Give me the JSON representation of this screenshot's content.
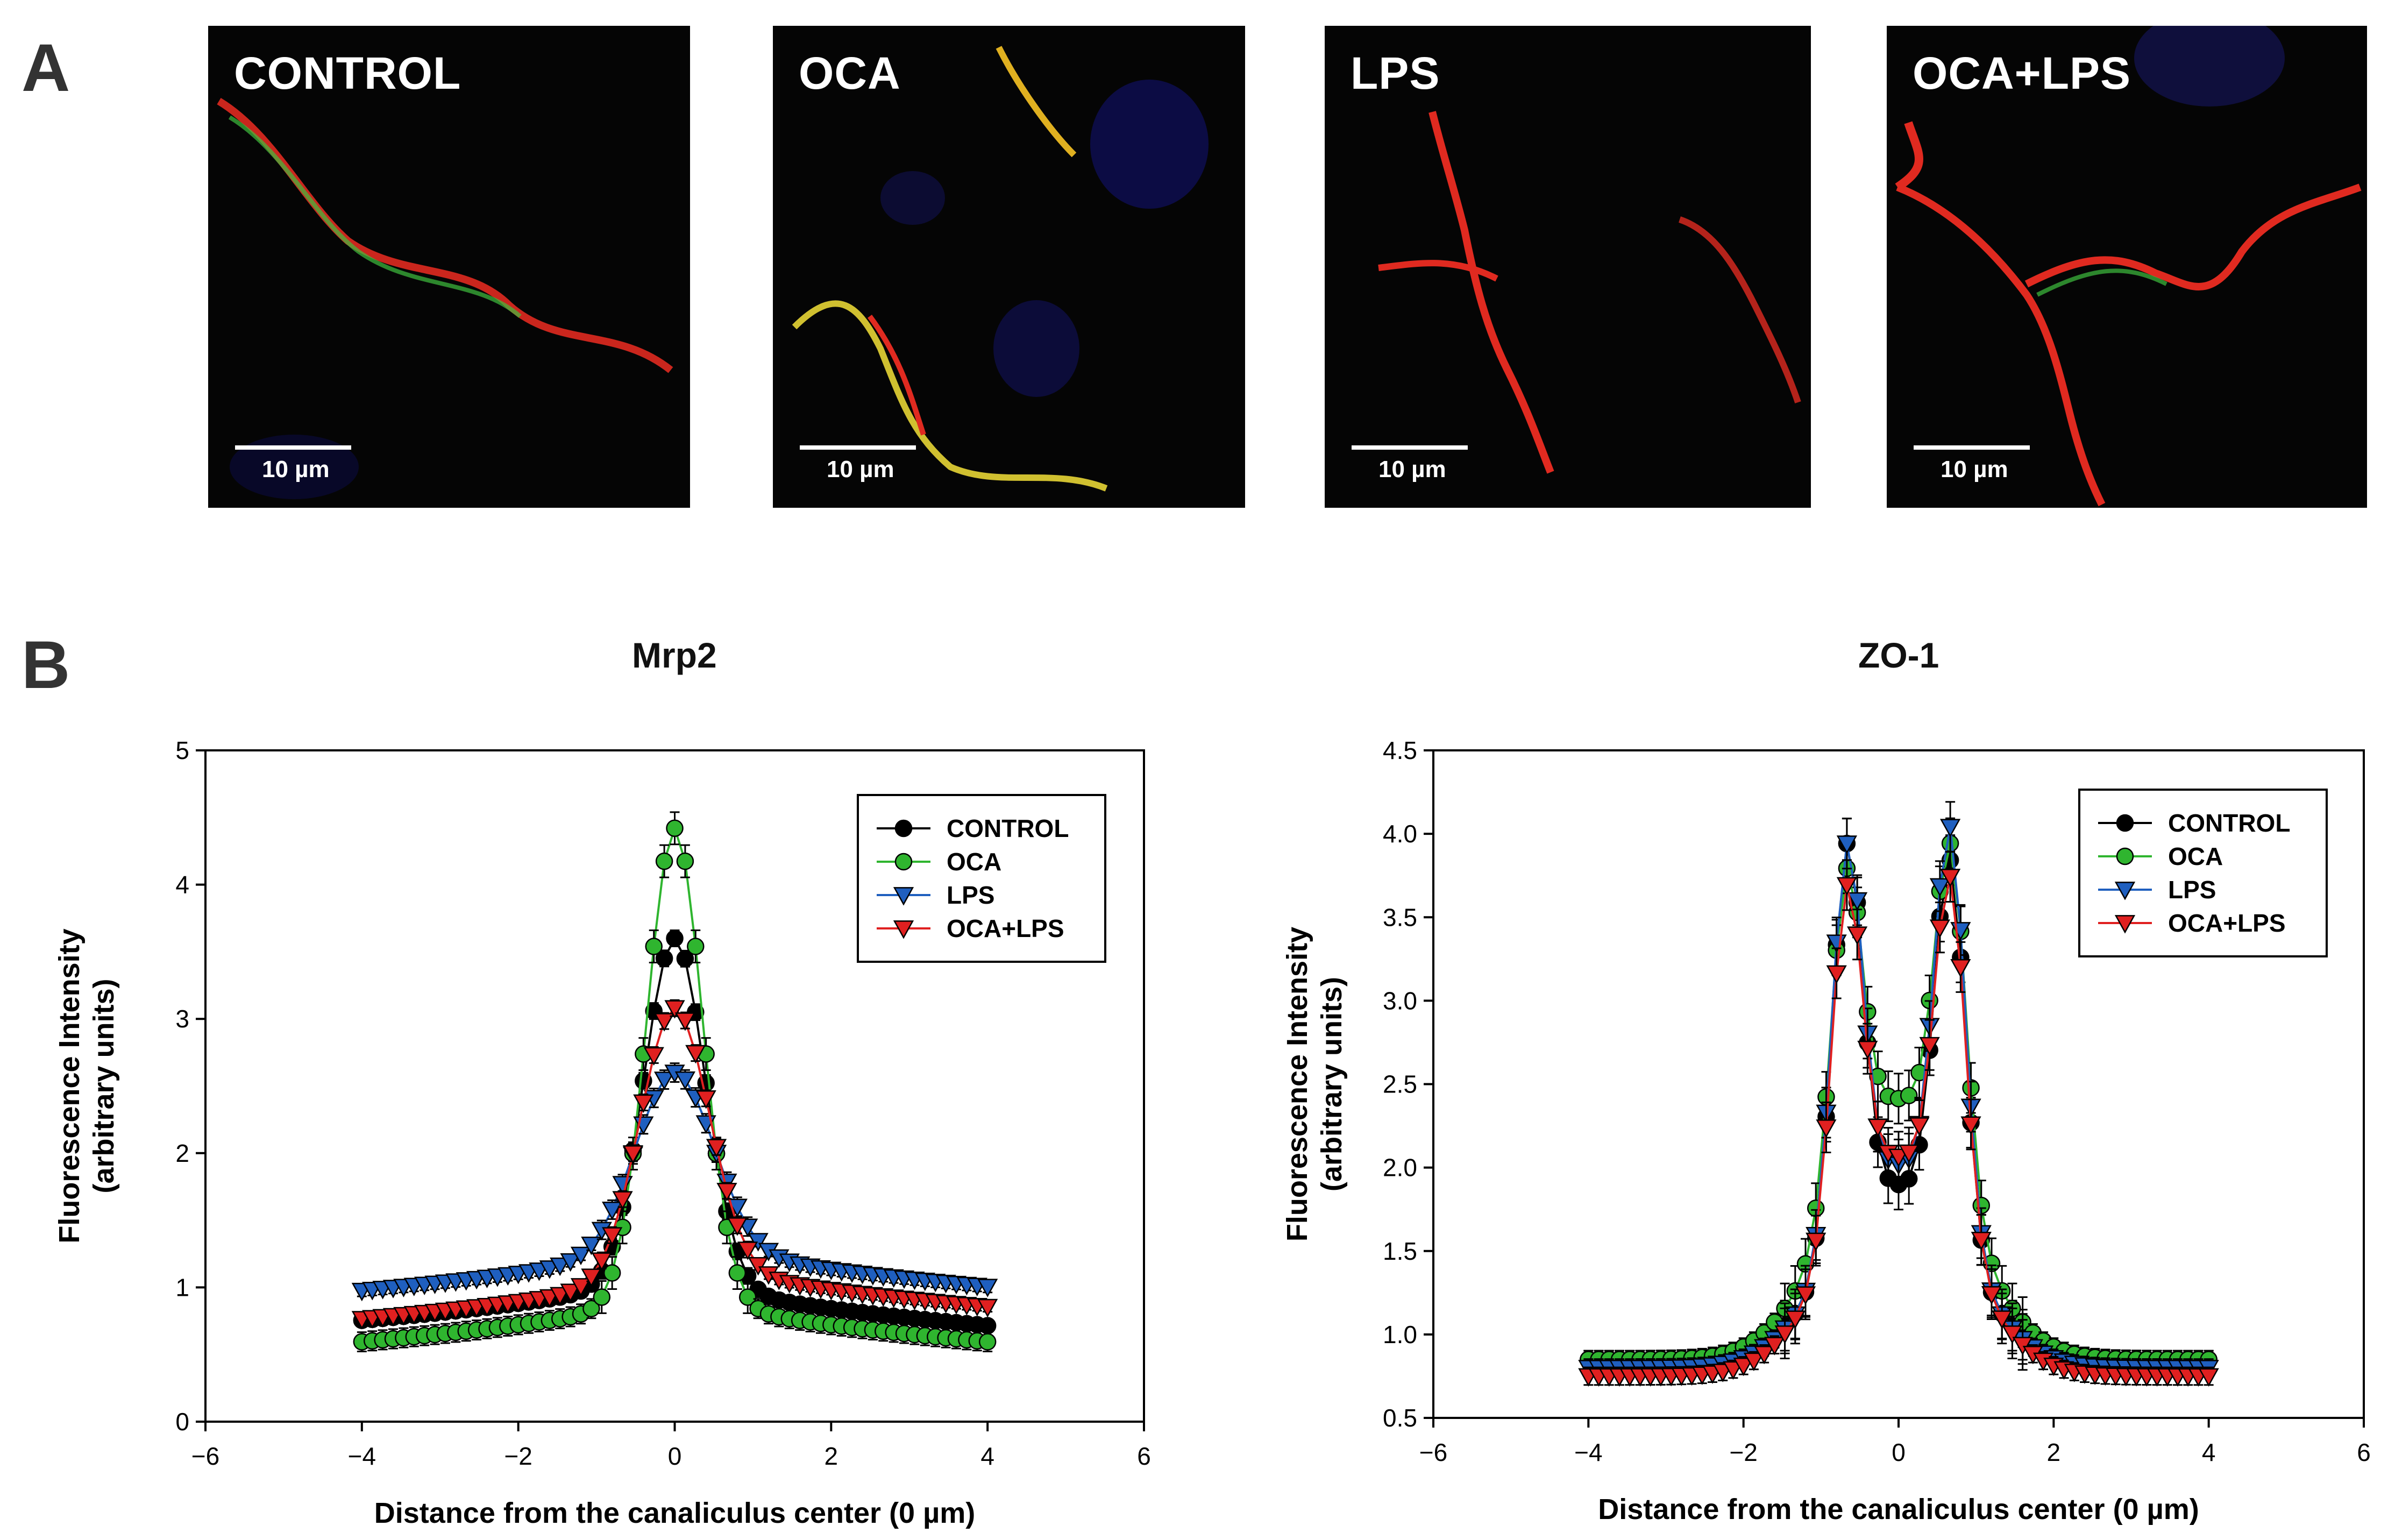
{
  "panel_a_letter": "A",
  "panel_b_letter": "B",
  "micrographs": [
    {
      "label": "CONTROL",
      "scale": "10 µm"
    },
    {
      "label": "OCA",
      "scale": "10 µm"
    },
    {
      "label": "LPS",
      "scale": "10 µm"
    },
    {
      "label": "OCA+LPS",
      "scale": "10 µm"
    }
  ],
  "colors": {
    "CONTROL": "#000000",
    "OCA": "#2fb52f",
    "LPS": "#1f5fbf",
    "OCA+LPS": "#e02020"
  },
  "chart_data": [
    {
      "type": "scatter",
      "title": "Mrp2",
      "xlabel": "Distance from the canaliculus center (0 µm)",
      "ylabel": "Fluorescence Intensity (arbitrary units)",
      "xlim": [
        -6,
        6
      ],
      "ylim": [
        0,
        5
      ],
      "xticks": [
        "−6",
        "−4",
        "−2",
        "0",
        "2",
        "4",
        "6"
      ],
      "yticks": [
        "0",
        "1",
        "2",
        "3",
        "4",
        "5"
      ],
      "legend": "top-right",
      "shape": "single",
      "series": [
        {
          "name": "CONTROL",
          "peak": 3.6,
          "base_left": 0.92,
          "base_right": 0.88,
          "width": 0.55,
          "err": 0.06
        },
        {
          "name": "OCA",
          "peak": 4.42,
          "base_left": 0.76,
          "base_right": 0.76,
          "width": 0.5,
          "err": 0.12
        },
        {
          "name": "LPS",
          "peak": 2.6,
          "base_left": 1.14,
          "base_right": 1.17,
          "width": 0.7,
          "err": 0.07
        },
        {
          "name": "OCA+LPS",
          "peak": 3.08,
          "base_left": 0.93,
          "base_right": 1.02,
          "width": 0.62,
          "err": 0.06
        }
      ]
    },
    {
      "type": "scatter",
      "title": "ZO-1",
      "xlabel": "Distance from the canaliculus center (0 µm)",
      "ylabel": "Fluorescence Intensity (arbitrary units)",
      "xlim": [
        -6,
        6
      ],
      "ylim": [
        0.5,
        4.5
      ],
      "xticks": [
        "−6",
        "−4",
        "−2",
        "0",
        "2",
        "4",
        "6"
      ],
      "yticks": [
        "0.5",
        "1.0",
        "1.5",
        "2.0",
        "2.5",
        "3.0",
        "3.5",
        "4.0",
        "4.5"
      ],
      "legend": "top-right",
      "shape": "double",
      "series": [
        {
          "name": "CONTROL",
          "peak_left": 3.95,
          "peak_right": 3.85,
          "center": 1.88,
          "base": 0.85,
          "err": 0.15
        },
        {
          "name": "OCA",
          "peak_left": 3.8,
          "peak_right": 3.95,
          "center": 2.4,
          "base": 0.85,
          "err": 0.15
        },
        {
          "name": "LPS",
          "peak_left": 3.95,
          "peak_right": 4.05,
          "center": 2.0,
          "base": 0.8,
          "err": 0.15
        },
        {
          "name": "OCA+LPS",
          "peak_left": 3.7,
          "peak_right": 3.75,
          "center": 2.05,
          "base": 0.75,
          "err": 0.15
        }
      ]
    }
  ]
}
